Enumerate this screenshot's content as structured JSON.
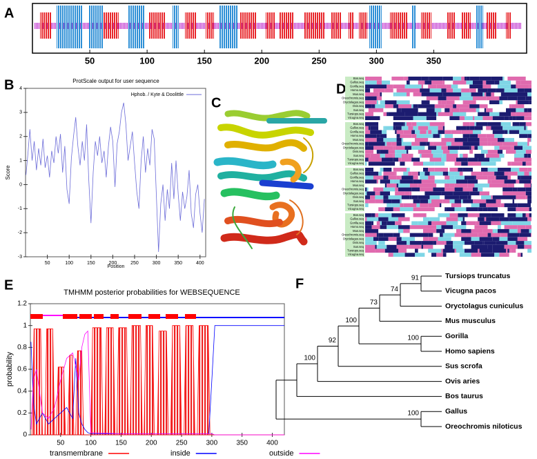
{
  "panel_labels": [
    "A",
    "B",
    "C",
    "D",
    "E",
    "F"
  ],
  "chart_data": [
    {
      "type": "track",
      "xlim": [
        0,
        431
      ],
      "xticks": [
        50,
        100,
        150,
        200,
        250,
        300,
        350
      ]
    },
    {
      "type": "line",
      "title": "ProtScale output for user sequence",
      "x_label": "Position",
      "y_label": "Score",
      "xlim": [
        0,
        413
      ],
      "ylim": [
        -3,
        4
      ],
      "xticks": [
        50,
        100,
        150,
        200,
        250,
        300,
        350,
        400
      ],
      "yticks": [
        -3,
        -2,
        -1,
        0,
        1,
        2,
        3,
        4
      ],
      "legend": "upper right",
      "series": [
        {
          "name": "Hphob. / Kyte & Doolittle",
          "color": "#6b6bd8",
          "x": [
            1,
            5,
            10,
            15,
            20,
            25,
            30,
            35,
            40,
            45,
            50,
            55,
            60,
            65,
            70,
            75,
            80,
            85,
            90,
            95,
            100,
            105,
            110,
            115,
            120,
            125,
            130,
            135,
            140,
            145,
            150,
            155,
            160,
            165,
            170,
            175,
            180,
            185,
            190,
            195,
            200,
            205,
            210,
            215,
            220,
            225,
            230,
            235,
            240,
            245,
            250,
            255,
            260,
            265,
            270,
            275,
            280,
            285,
            290,
            295,
            300,
            305,
            310,
            315,
            320,
            325,
            330,
            335,
            340,
            345,
            350,
            355,
            360,
            365,
            370,
            375,
            380,
            385,
            390,
            395,
            400,
            405,
            410
          ],
          "values": [
            0.4,
            1.2,
            2.3,
            1.0,
            1.8,
            0.6,
            1.5,
            0.8,
            1.9,
            0.7,
            1.2,
            0.3,
            1.4,
            0.9,
            2.0,
            1.3,
            2.1,
            0.5,
            1.6,
            -0.2,
            -0.8,
            1.1,
            2.0,
            2.8,
            1.6,
            0.8,
            1.8,
            1.0,
            2.5,
            0.2,
            -1.6,
            0.5,
            1.8,
            1.2,
            2.0,
            0.9,
            1.4,
            0.3,
            1.6,
            2.4,
            1.8,
            -0.1,
            1.7,
            2.2,
            3.0,
            3.4,
            2.5,
            1.0,
            1.6,
            2.2,
            0.9,
            -0.3,
            -1.0,
            1.0,
            2.0,
            0.5,
            1.5,
            0.8,
            2.3,
            1.9,
            -0.5,
            -2.8,
            -0.8,
            0.0,
            -1.5,
            -0.2,
            -1.0,
            0.9,
            -0.6,
            1.0,
            -0.4,
            -1.5,
            -0.3,
            -1.0,
            -0.5,
            0.6,
            -1.2,
            -1.8,
            -0.4,
            0.0,
            -1.2,
            -2.0,
            -0.6
          ]
        }
      ]
    },
    {
      "type": "alignment",
      "names": [
        "Bos.seq",
        "Gallus.seq",
        "Gorilla.seq",
        "Homo.seq",
        "Mus.seq",
        "Oreochromis.seq",
        "Oryctolagus.seq",
        "Ovis.seq",
        "Sus.seq",
        "Tursiops.seq",
        "Vicugna.seq"
      ]
    },
    {
      "type": "line",
      "title": "TMHMM posterior probabilities for WEBSEQUENCE",
      "y_label": "probability",
      "xlim": [
        0,
        420
      ],
      "ylim": [
        0,
        1.2
      ],
      "xticks": [
        50,
        100,
        150,
        200,
        250,
        300,
        350,
        400
      ],
      "yticks": [
        0,
        0.2,
        0.4,
        0.6,
        0.8,
        1,
        1.2
      ],
      "legend": "bottom",
      "series": [
        {
          "name": "transmembrane",
          "color": "#ff0000",
          "area": true,
          "x": [
            1,
            3,
            6,
            17,
            20,
            24,
            27,
            37,
            40,
            43,
            46,
            55,
            58,
            62,
            65,
            69,
            72,
            75,
            78,
            85,
            88,
            100,
            103,
            117,
            120,
            123,
            126,
            137,
            140,
            143,
            146,
            159,
            162,
            165,
            168,
            182,
            185,
            188,
            191,
            202,
            205,
            210,
            213,
            225,
            228,
            232,
            235,
            247,
            250,
            254,
            257,
            269,
            272,
            276,
            279,
            294,
            297,
            420
          ],
          "values": [
            0,
            0,
            0.97,
            0.97,
            0,
            0,
            0.97,
            0.97,
            0,
            0,
            0.62,
            0.62,
            0,
            0,
            0.73,
            0.73,
            0,
            0,
            0.77,
            0.77,
            0,
            0,
            0.98,
            0.98,
            0,
            0,
            0.98,
            0.98,
            0,
            0,
            0.98,
            0.98,
            0,
            0,
            1,
            1,
            0,
            0,
            1,
            1,
            0,
            0,
            0.95,
            0.95,
            0,
            0,
            1,
            1,
            0,
            0,
            1,
            1,
            0,
            0,
            1,
            1,
            0,
            0
          ]
        },
        {
          "name": "inside",
          "color": "#0000ff",
          "x": [
            1,
            5,
            10,
            20,
            30,
            40,
            50,
            60,
            70,
            75,
            80,
            85,
            90,
            95,
            100,
            150,
            200,
            250,
            295,
            300,
            305,
            420
          ],
          "values": [
            0.85,
            0.3,
            0.1,
            0.2,
            0.1,
            0.15,
            0.2,
            0.25,
            0.15,
            0.7,
            0.2,
            0.1,
            0.05,
            0.02,
            0.01,
            0.01,
            0.01,
            0.01,
            0.01,
            0.5,
            1,
            1
          ]
        },
        {
          "name": "outside",
          "color": "#ff00ff",
          "x": [
            1,
            5,
            10,
            20,
            30,
            40,
            50,
            60,
            70,
            80,
            85,
            90,
            95,
            100,
            150,
            200,
            250,
            300,
            305,
            420
          ],
          "values": [
            0.05,
            0.5,
            0.6,
            0.2,
            0.15,
            0.25,
            0.5,
            0.7,
            0.75,
            0.5,
            0.8,
            0.92,
            0.95,
            0.02,
            0.01,
            0.01,
            0.01,
            0.01,
            0,
            0
          ]
        }
      ]
    },
    {
      "type": "tree",
      "root": {
        "children": [
          {
            "children": [
              {
                "support": 100,
                "children": [
                  {
                    "support": 92,
                    "children": [
                      {
                        "support": 100,
                        "children": [
                          {
                            "support": 73,
                            "children": [
                              {
                                "support": 74,
                                "children": [
                                  {
                                    "support": 91,
                                    "children": [
                                      {
                                        "name": "Tursiops truncatus"
                                      },
                                      {
                                        "name": "Vicugna pacos"
                                      }
                                    ]
                                  },
                                  {
                                    "name": "Oryctolagus cuniculus"
                                  }
                                ]
                              },
                              {
                                "name": "Mus musculus"
                              }
                            ]
                          },
                          {
                            "support": 100,
                            "children": [
                              {
                                "name": "Gorilla"
                              },
                              {
                                "name": "Homo sapiens"
                              }
                            ]
                          }
                        ]
                      },
                      {
                        "name": "Sus scrofa"
                      }
                    ]
                  },
                  {
                    "name": "Ovis aries"
                  }
                ]
              },
              {
                "name": "Bos taurus"
              }
            ]
          },
          {
            "support": 100,
            "children": [
              {
                "name": "Gallus"
              },
              {
                "name": "Oreochromis niloticus"
              }
            ]
          }
        ]
      }
    }
  ]
}
